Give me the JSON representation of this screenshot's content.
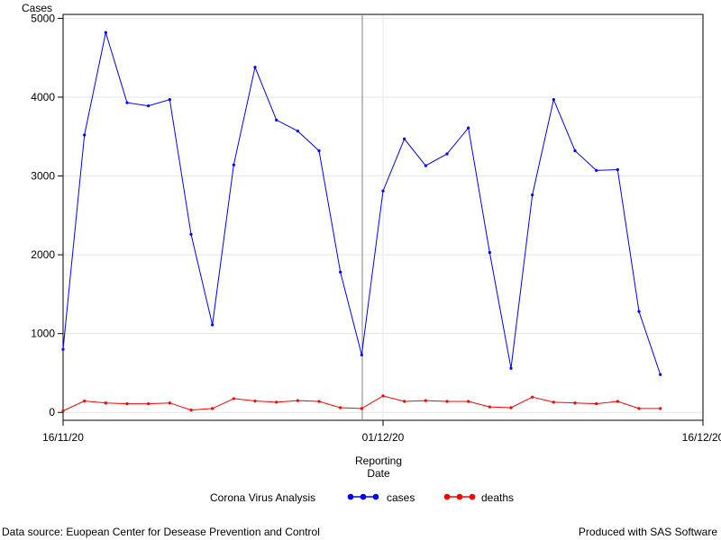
{
  "chart_data": {
    "type": "line",
    "ylabel": "Cases",
    "xlabel_line1": "Reporting",
    "xlabel_line2": "Date",
    "legend_title": "Corona Virus Analysis",
    "legend_position": "bottom",
    "grid": true,
    "x_range": [
      "2020-11-16",
      "2020-12-16"
    ],
    "x_ticks": [
      "16/11/20",
      "01/12/20",
      "16/12/20"
    ],
    "reference_line_x": "2020-12-01",
    "ylim": [
      -100,
      5050
    ],
    "y_ticks": [
      0,
      1000,
      2000,
      3000,
      4000,
      5000
    ],
    "dates": [
      "2020-11-16",
      "2020-11-17",
      "2020-11-18",
      "2020-11-19",
      "2020-11-20",
      "2020-11-21",
      "2020-11-22",
      "2020-11-23",
      "2020-11-24",
      "2020-11-25",
      "2020-11-26",
      "2020-11-27",
      "2020-11-28",
      "2020-11-29",
      "2020-11-30",
      "2020-12-01",
      "2020-12-02",
      "2020-12-03",
      "2020-12-04",
      "2020-12-05",
      "2020-12-06",
      "2020-12-07",
      "2020-12-08",
      "2020-12-09",
      "2020-12-10",
      "2020-12-11",
      "2020-12-12",
      "2020-12-13",
      "2020-12-14"
    ],
    "series": [
      {
        "name": "cases",
        "color": "#0000ff",
        "values": [
          800,
          3520,
          4820,
          3930,
          3890,
          3970,
          2260,
          1110,
          3140,
          4380,
          3710,
          3570,
          3320,
          1780,
          730,
          2810,
          3470,
          3130,
          3280,
          3610,
          2030,
          560,
          2760,
          3970,
          3320,
          3070,
          3080,
          1280,
          480
        ]
      },
      {
        "name": "deaths",
        "color": "#ff0000",
        "values": [
          20,
          145,
          120,
          110,
          110,
          120,
          30,
          50,
          175,
          145,
          130,
          150,
          140,
          60,
          50,
          210,
          140,
          150,
          140,
          140,
          70,
          60,
          195,
          130,
          120,
          110,
          140,
          50,
          50
        ]
      }
    ]
  },
  "footnote_left": "Data source: Euopean Center for Desease Prevention and Control",
  "footnote_right": "Produced with SAS Software"
}
